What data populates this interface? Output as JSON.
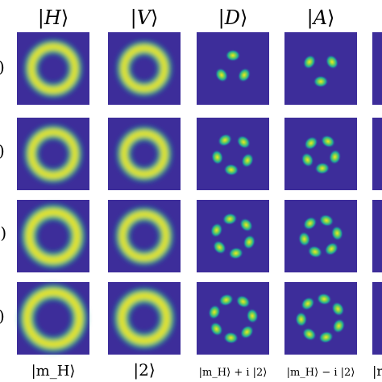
{
  "column_headers": [
    {
      "pre": "|",
      "name": "H",
      "post": "⟩"
    },
    {
      "pre": "|",
      "name": "V",
      "post": "⟩"
    },
    {
      "pre": "|",
      "name": "D",
      "post": "⟩"
    },
    {
      "pre": "|",
      "name": "A",
      "post": "⟩"
    }
  ],
  "row_labels": [
    ")",
    ")",
    "·)",
    ")"
  ],
  "bottom_labels": [
    "|m_H⟩",
    "|2⟩",
    "|m_H⟩ + i |2⟩",
    "|m_H⟩ − i |2⟩",
    "|r"
  ],
  "colors": {
    "background": "#3d2d9a",
    "ring_outer": "#1fa59a",
    "ring_mid": "#6ccc58",
    "ring_core": "#f2e61e"
  },
  "panels": [
    [
      {
        "type": "ring",
        "r": 0.3,
        "w": 0.1
      },
      {
        "type": "ring",
        "r": 0.28,
        "w": 0.1
      },
      {
        "type": "lobes",
        "n": 3,
        "r": 0.18,
        "rot": -90
      },
      {
        "type": "lobes",
        "n": 3,
        "r": 0.18,
        "rot": 90
      }
    ],
    [
      {
        "type": "ring",
        "r": 0.3,
        "w": 0.1
      },
      {
        "type": "ring",
        "r": 0.28,
        "w": 0.1
      },
      {
        "type": "lobes",
        "n": 5,
        "r": 0.22,
        "rot": -120
      },
      {
        "type": "lobes",
        "n": 5,
        "r": 0.2,
        "rot": -60
      }
    ],
    [
      {
        "type": "ring",
        "r": 0.33,
        "w": 0.11
      },
      {
        "type": "ring",
        "r": 0.3,
        "w": 0.1
      },
      {
        "type": "lobes",
        "n": 6,
        "r": 0.24,
        "rot": -100
      },
      {
        "type": "lobes",
        "n": 6,
        "r": 0.23,
        "rot": -70
      }
    ],
    [
      {
        "type": "ring",
        "r": 0.36,
        "w": 0.11
      },
      {
        "type": "ring",
        "r": 0.31,
        "w": 0.11
      },
      {
        "type": "lobes",
        "n": 7,
        "r": 0.27,
        "rot": -110
      },
      {
        "type": "lobes",
        "n": 7,
        "r": 0.27,
        "rot": -80
      }
    ]
  ]
}
